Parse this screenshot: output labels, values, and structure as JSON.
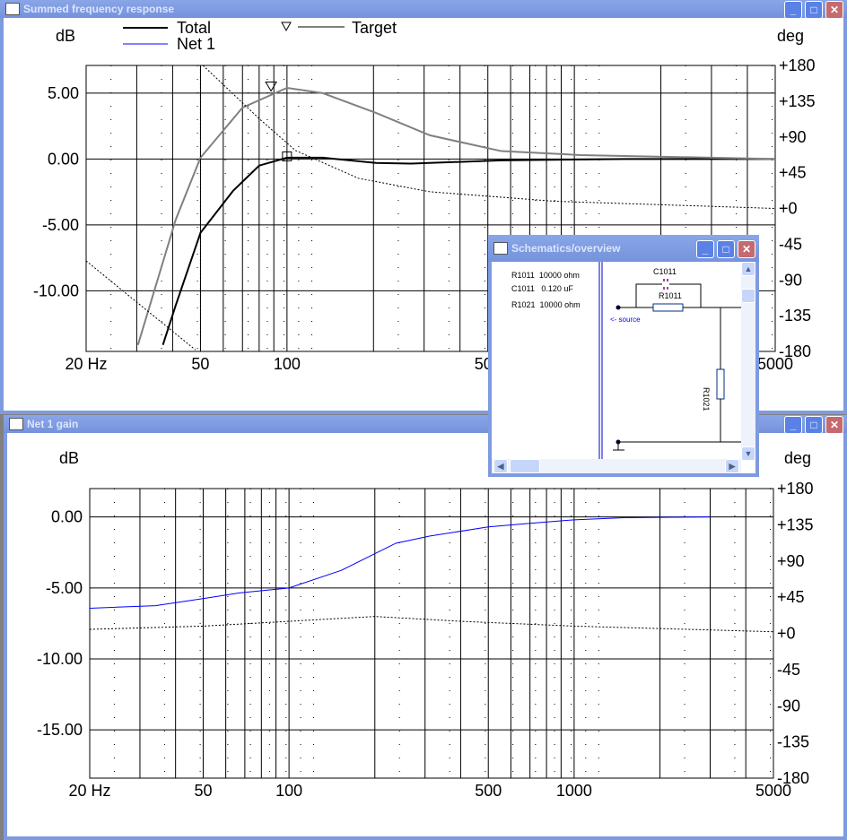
{
  "top_window": {
    "title": "Summed frequency response",
    "legend": {
      "total": "Total",
      "net1": "Net 1",
      "target": "Target"
    },
    "ylabel": "dB",
    "y2label": "deg"
  },
  "bottom_window": {
    "title": "Net 1 gain",
    "ylabel": "dB",
    "y2label": "deg"
  },
  "schematic_window": {
    "title": "Schematics/overview",
    "parts": [
      {
        "name": "R1011",
        "value": "10000 ohm"
      },
      {
        "name": "C1011",
        "value": "0.120 uF"
      },
      {
        "name": "R1021",
        "value": "10000 ohm"
      }
    ],
    "source_label": "<- source",
    "labels": {
      "c": "C1011",
      "r1": "R1011",
      "r2": "R1021"
    }
  },
  "chart_data": [
    {
      "type": "line",
      "title": "Summed frequency response",
      "xscale": "log",
      "xlim": [
        20,
        5000
      ],
      "ylim": [
        -14.6,
        7.1
      ],
      "y2lim": [
        -180,
        180
      ],
      "xticks": [
        "20 Hz",
        "50",
        "100",
        "500",
        "1000",
        "5000"
      ],
      "xtick_values": [
        20,
        50,
        100,
        500,
        1000,
        5000
      ],
      "yticks": [
        "5.00",
        "0.00",
        "-5.00",
        "-10.00"
      ],
      "ytick_values": [
        5,
        0,
        -5,
        -10
      ],
      "y2ticks": [
        "+180",
        "+135",
        "+90",
        "+45",
        "+0",
        "-45",
        "-90",
        "-135",
        "-180"
      ],
      "y2tick_values": [
        180,
        135,
        90,
        45,
        0,
        -45,
        -90,
        -135,
        -180
      ],
      "series": [
        {
          "name": "Total",
          "color": "#000000",
          "x": [
            37,
            41,
            50,
            65,
            80,
            100,
            133,
            204,
            270,
            557,
            1500,
            5000
          ],
          "y": [
            -14.1,
            -11.1,
            -5.6,
            -2.4,
            -0.5,
            0.1,
            0.1,
            -0.3,
            -0.35,
            -0.1,
            0,
            0
          ]
        },
        {
          "name": "Target",
          "color": "#808080",
          "x": [
            30.3,
            41,
            50,
            70,
            100,
            133,
            204,
            314,
            557,
            1050,
            5000
          ],
          "y": [
            -14.1,
            -4.6,
            0.1,
            3.9,
            5.4,
            5.0,
            3.5,
            1.8,
            0.6,
            0.3,
            0
          ]
        },
        {
          "name": "Phase",
          "color": "#000000",
          "axis": "deg",
          "dashed": true,
          "x": [
            20,
            30,
            48,
            51,
            80,
            107,
            177,
            314,
            855,
            5000
          ],
          "y": [
            -66,
            -118,
            -178,
            180,
            113,
            73,
            38,
            21,
            9,
            0
          ]
        }
      ]
    },
    {
      "type": "line",
      "title": "Net 1 gain",
      "xscale": "log",
      "xlim": [
        20,
        5000
      ],
      "ylim": [
        -18.4,
        2
      ],
      "y2lim": [
        -180,
        180
      ],
      "xticks": [
        "20 Hz",
        "50",
        "100",
        "500",
        "1000",
        "5000"
      ],
      "xtick_values": [
        20,
        50,
        100,
        500,
        1000,
        5000
      ],
      "yticks": [
        "0.00",
        "-5.00",
        "-10.00",
        "-15.00"
      ],
      "ytick_values": [
        0,
        -5,
        -10,
        -15
      ],
      "y2ticks": [
        "+180",
        "+135",
        "+90",
        "+45",
        "+0",
        "-45",
        "-90",
        "-135",
        "-180"
      ],
      "y2tick_values": [
        180,
        135,
        90,
        45,
        0,
        -45,
        -90,
        -135,
        -180
      ],
      "series": [
        {
          "name": "Net 1",
          "color": "#0000ff",
          "x": [
            20,
            34,
            52,
            67,
            100,
            153,
            237,
            311,
            500,
            700,
            1000,
            1500,
            3000
          ],
          "y": [
            -6.43,
            -6.25,
            -5.7,
            -5.35,
            -5.0,
            -3.75,
            -1.85,
            -1.35,
            -0.7,
            -0.45,
            -0.2,
            -0.05,
            0
          ]
        },
        {
          "name": "Phase",
          "color": "#000000",
          "axis": "deg",
          "dashed": true,
          "x": [
            20,
            50,
            100,
            200,
            400,
            1000,
            5000
          ],
          "y": [
            5,
            9,
            15,
            21,
            15,
            9,
            2
          ]
        }
      ]
    }
  ]
}
